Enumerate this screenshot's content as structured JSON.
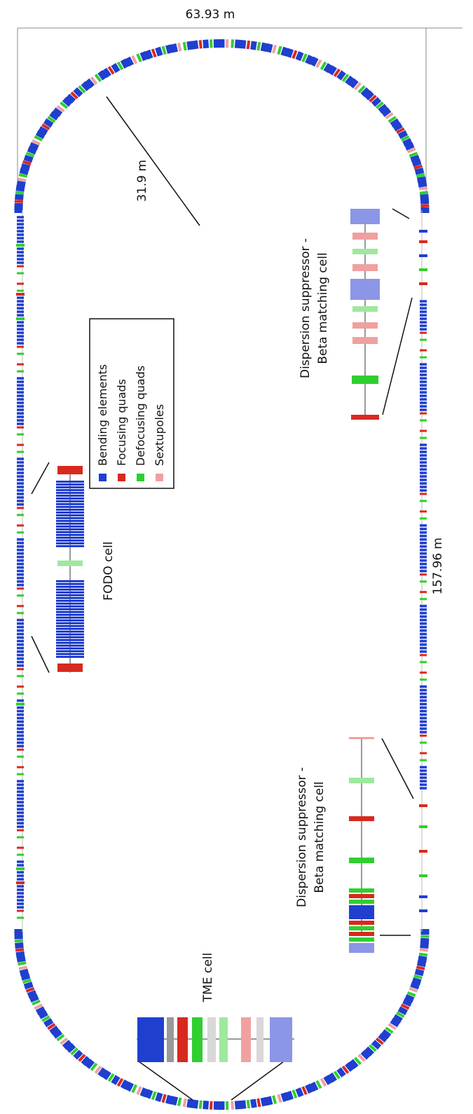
{
  "dimensions": {
    "width_label": "63.93 m",
    "radius_label": "31.9 m",
    "straight_label": "157.96 m"
  },
  "legend": {
    "items": [
      {
        "label": "Bending elements",
        "color": "#1f3fcf"
      },
      {
        "label": "Focusing quads",
        "color": "#d8291f"
      },
      {
        "label": "Defocusing quads",
        "color": "#2fcf2f"
      },
      {
        "label": "Sextupoles",
        "color": "#f0a0a0"
      }
    ]
  },
  "cells": {
    "fodo": "FODO cell",
    "tme": "TME cell",
    "ds_top": {
      "line1": "Dispersion suppressor -",
      "line2": "Beta matching cell"
    },
    "ds_bottom": {
      "line1": "Dispersion suppressor -",
      "line2": "Beta matching cell"
    }
  },
  "colors": {
    "bend": "#1f3fcf",
    "bend_light": "#8c96e6",
    "focus": "#d8291f",
    "focus_light": "#f0a0a0",
    "defocus": "#2fcf2f",
    "defocus_light": "#9fe89f",
    "sext": "#f0a0a0",
    "grey": "#999999",
    "grey_light": "#d8d8d8"
  }
}
